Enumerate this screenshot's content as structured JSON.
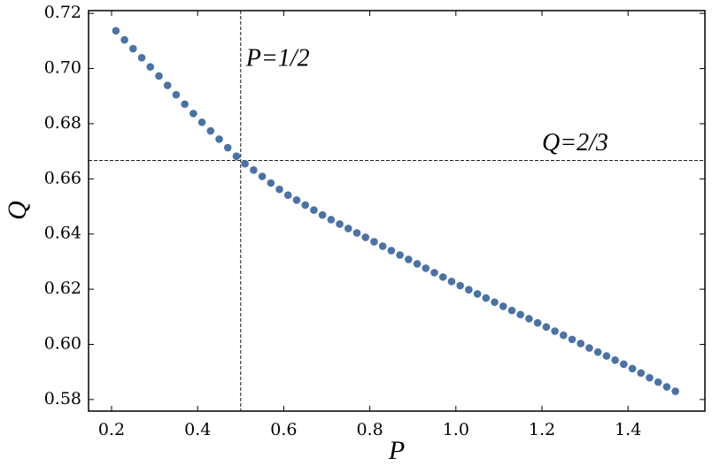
{
  "chart_data": {
    "type": "scatter",
    "xlabel": "P",
    "ylabel": "Q",
    "color": "#4a72a6",
    "x": [
      0.21,
      0.23,
      0.25,
      0.27,
      0.29,
      0.31,
      0.33,
      0.35,
      0.37,
      0.39,
      0.41,
      0.43,
      0.45,
      0.47,
      0.49,
      0.51,
      0.53,
      0.55,
      0.57,
      0.59,
      0.61,
      0.63,
      0.65,
      0.67,
      0.69,
      0.71,
      0.73,
      0.75,
      0.77,
      0.79,
      0.81,
      0.83,
      0.85,
      0.87,
      0.89,
      0.91,
      0.93,
      0.95,
      0.97,
      0.99,
      1.01,
      1.03,
      1.05,
      1.07,
      1.09,
      1.11,
      1.13,
      1.15,
      1.17,
      1.19,
      1.21,
      1.23,
      1.25,
      1.27,
      1.29,
      1.31,
      1.33,
      1.35,
      1.37,
      1.39,
      1.41,
      1.43,
      1.45,
      1.47,
      1.49,
      1.51
    ],
    "values": [
      0.7137,
      0.7104,
      0.7072,
      0.7039,
      0.7006,
      0.6973,
      0.6939,
      0.6905,
      0.6871,
      0.6837,
      0.6805,
      0.6774,
      0.6744,
      0.6713,
      0.6682,
      0.6655,
      0.6632,
      0.6609,
      0.6585,
      0.6562,
      0.6541,
      0.6523,
      0.6505,
      0.6487,
      0.6469,
      0.6452,
      0.6436,
      0.642,
      0.6404,
      0.6388,
      0.6372,
      0.6356,
      0.634,
      0.6324,
      0.6308,
      0.6292,
      0.6276,
      0.626,
      0.6244,
      0.6228,
      0.6213,
      0.6198,
      0.6183,
      0.6168,
      0.6153,
      0.6138,
      0.6123,
      0.6108,
      0.6093,
      0.6078,
      0.6063,
      0.6048,
      0.6033,
      0.6018,
      0.6003,
      0.5987,
      0.5972,
      0.5958,
      0.5943,
      0.5928,
      0.5912,
      0.5896,
      0.5879,
      0.5863,
      0.5846,
      0.583
    ],
    "xlim": [
      0.1465,
      1.5786
    ],
    "ylim": [
      0.5758,
      0.721
    ],
    "xticks": [
      0.2,
      0.4,
      0.6,
      0.8,
      {
        "value": 1,
        "label": "1.0"
      },
      1.2,
      1.4
    ],
    "yticks": [
      0.58,
      {
        "value": 0.6,
        "label": "0.60"
      },
      0.62,
      0.64,
      0.66,
      0.68,
      {
        "value": 0.7,
        "label": "0.70"
      },
      0.72
    ],
    "vline": {
      "value": 0.5,
      "label": "P=1/2"
    },
    "hline": {
      "value": 0.6667,
      "label": "Q=2/3"
    }
  }
}
